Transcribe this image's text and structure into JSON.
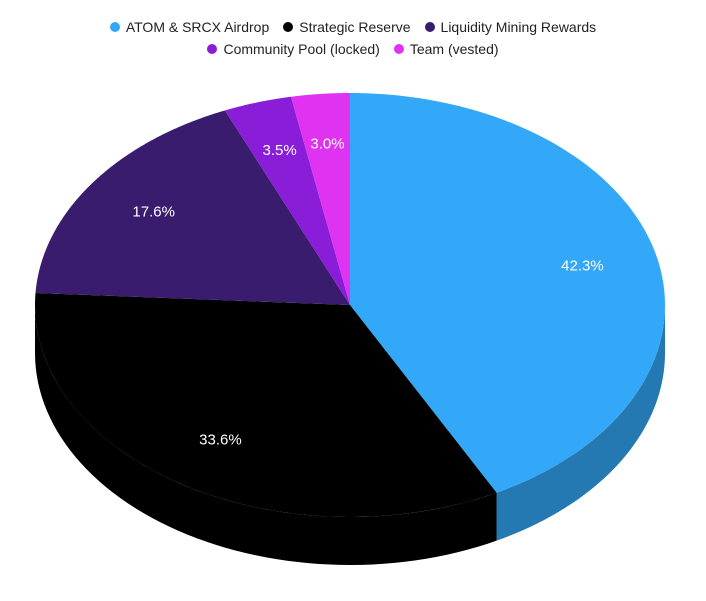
{
  "chart_data": {
    "type": "pie",
    "categories": [
      "ATOM & SRCX Airdrop",
      "Strategic Reserve",
      "Liquidity Mining Rewards",
      "Community Pool (locked)",
      "Team (vested)"
    ],
    "values": [
      42.3,
      33.6,
      17.6,
      3.5,
      3.0
    ],
    "value_labels": [
      "42.3%",
      "33.6%",
      "17.6%",
      "3.5%",
      "3.0%"
    ],
    "colors": [
      "#33a8f8",
      "#000000",
      "#3a1c6e",
      "#8a1ed8",
      "#e033f2"
    ],
    "legend": "top"
  }
}
